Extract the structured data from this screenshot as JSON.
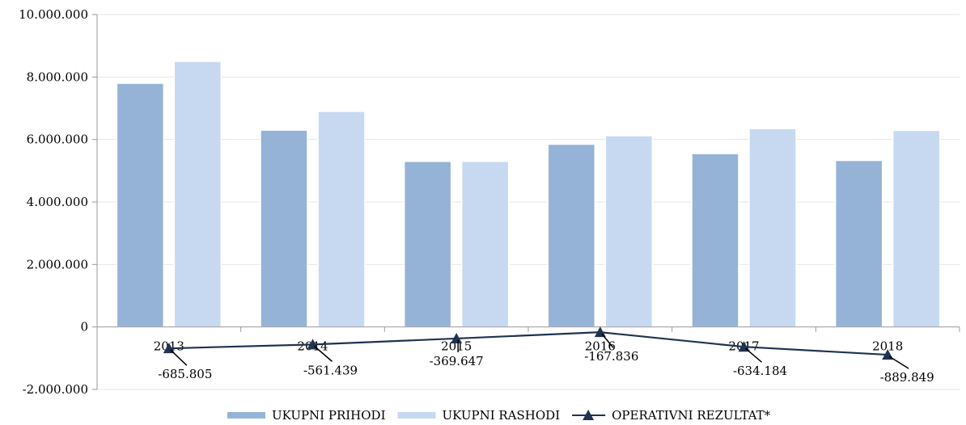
{
  "chart_data": {
    "type": "bar",
    "categories": [
      "2013",
      "2014",
      "2015",
      "2016",
      "2017",
      "2018"
    ],
    "series": [
      {
        "name": "UKUPNI PRIHODI",
        "kind": "bar",
        "color": "#95b3d7",
        "values": [
          7800000,
          6300000,
          5300000,
          5850000,
          5550000,
          5330000
        ]
      },
      {
        "name": "UKUPNI RASHODI",
        "kind": "bar",
        "color": "#c6d9f1",
        "values": [
          8500000,
          6900000,
          5300000,
          6120000,
          6350000,
          6290000
        ]
      },
      {
        "name": "OPERATIVNI REZULTAT*",
        "kind": "line",
        "color": "#1f3350",
        "values": [
          -685805,
          -561439,
          -369647,
          -167836,
          -634184,
          -889849
        ],
        "labels": [
          "-685.805",
          "-561.439",
          "-369.647",
          "-167.836",
          "-634.184",
          "-889.849"
        ]
      }
    ],
    "ylim": [
      -2000000,
      10000000
    ],
    "yticks": [
      10000000,
      8000000,
      6000000,
      4000000,
      2000000,
      0,
      -2000000
    ],
    "ytick_labels": [
      "10.000.000",
      "8.000.000",
      "6.000.000",
      "4.000.000",
      "2.000.000",
      "0",
      "-2.000.000"
    ],
    "grid": true,
    "legend": "bottom",
    "title": "",
    "xlabel": "",
    "ylabel": ""
  }
}
